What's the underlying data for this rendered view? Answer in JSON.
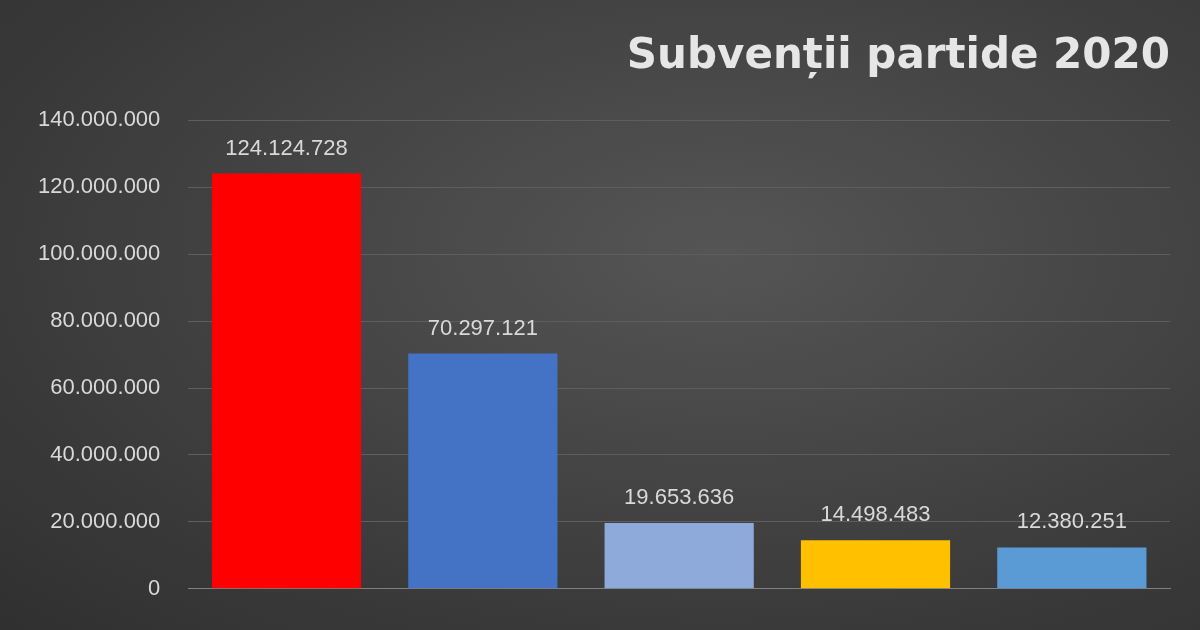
{
  "chart_data": {
    "type": "bar",
    "title": "Subvenții partide 2020",
    "categories": [
      null,
      null,
      null,
      null,
      null
    ],
    "values": [
      124124728,
      70297121,
      19653636,
      14498483,
      12380251
    ],
    "colors": [
      "#ff0000",
      "#4472c4",
      "#8eaadb",
      "#ffc000",
      "#5b9bd5"
    ],
    "ylim": [
      0,
      140000000
    ],
    "yticks": [
      {
        "value": 0,
        "label": "0"
      },
      {
        "value": 20000000,
        "label": "20.000.000"
      },
      {
        "value": 40000000,
        "label": "40.000.000"
      },
      {
        "value": 60000000,
        "label": "60.000.000"
      },
      {
        "value": 80000000,
        "label": "80.000.000"
      },
      {
        "value": 100000000,
        "label": "100.000.000"
      },
      {
        "value": 120000000,
        "label": "120.000.000"
      },
      {
        "value": 140000000,
        "label": "140.000.000"
      }
    ],
    "value_labels": [
      "124.124.728",
      "70.297.121",
      "19.653.636",
      "14.498.483",
      "12.380.251"
    ],
    "grid": "y",
    "legend": false
  }
}
